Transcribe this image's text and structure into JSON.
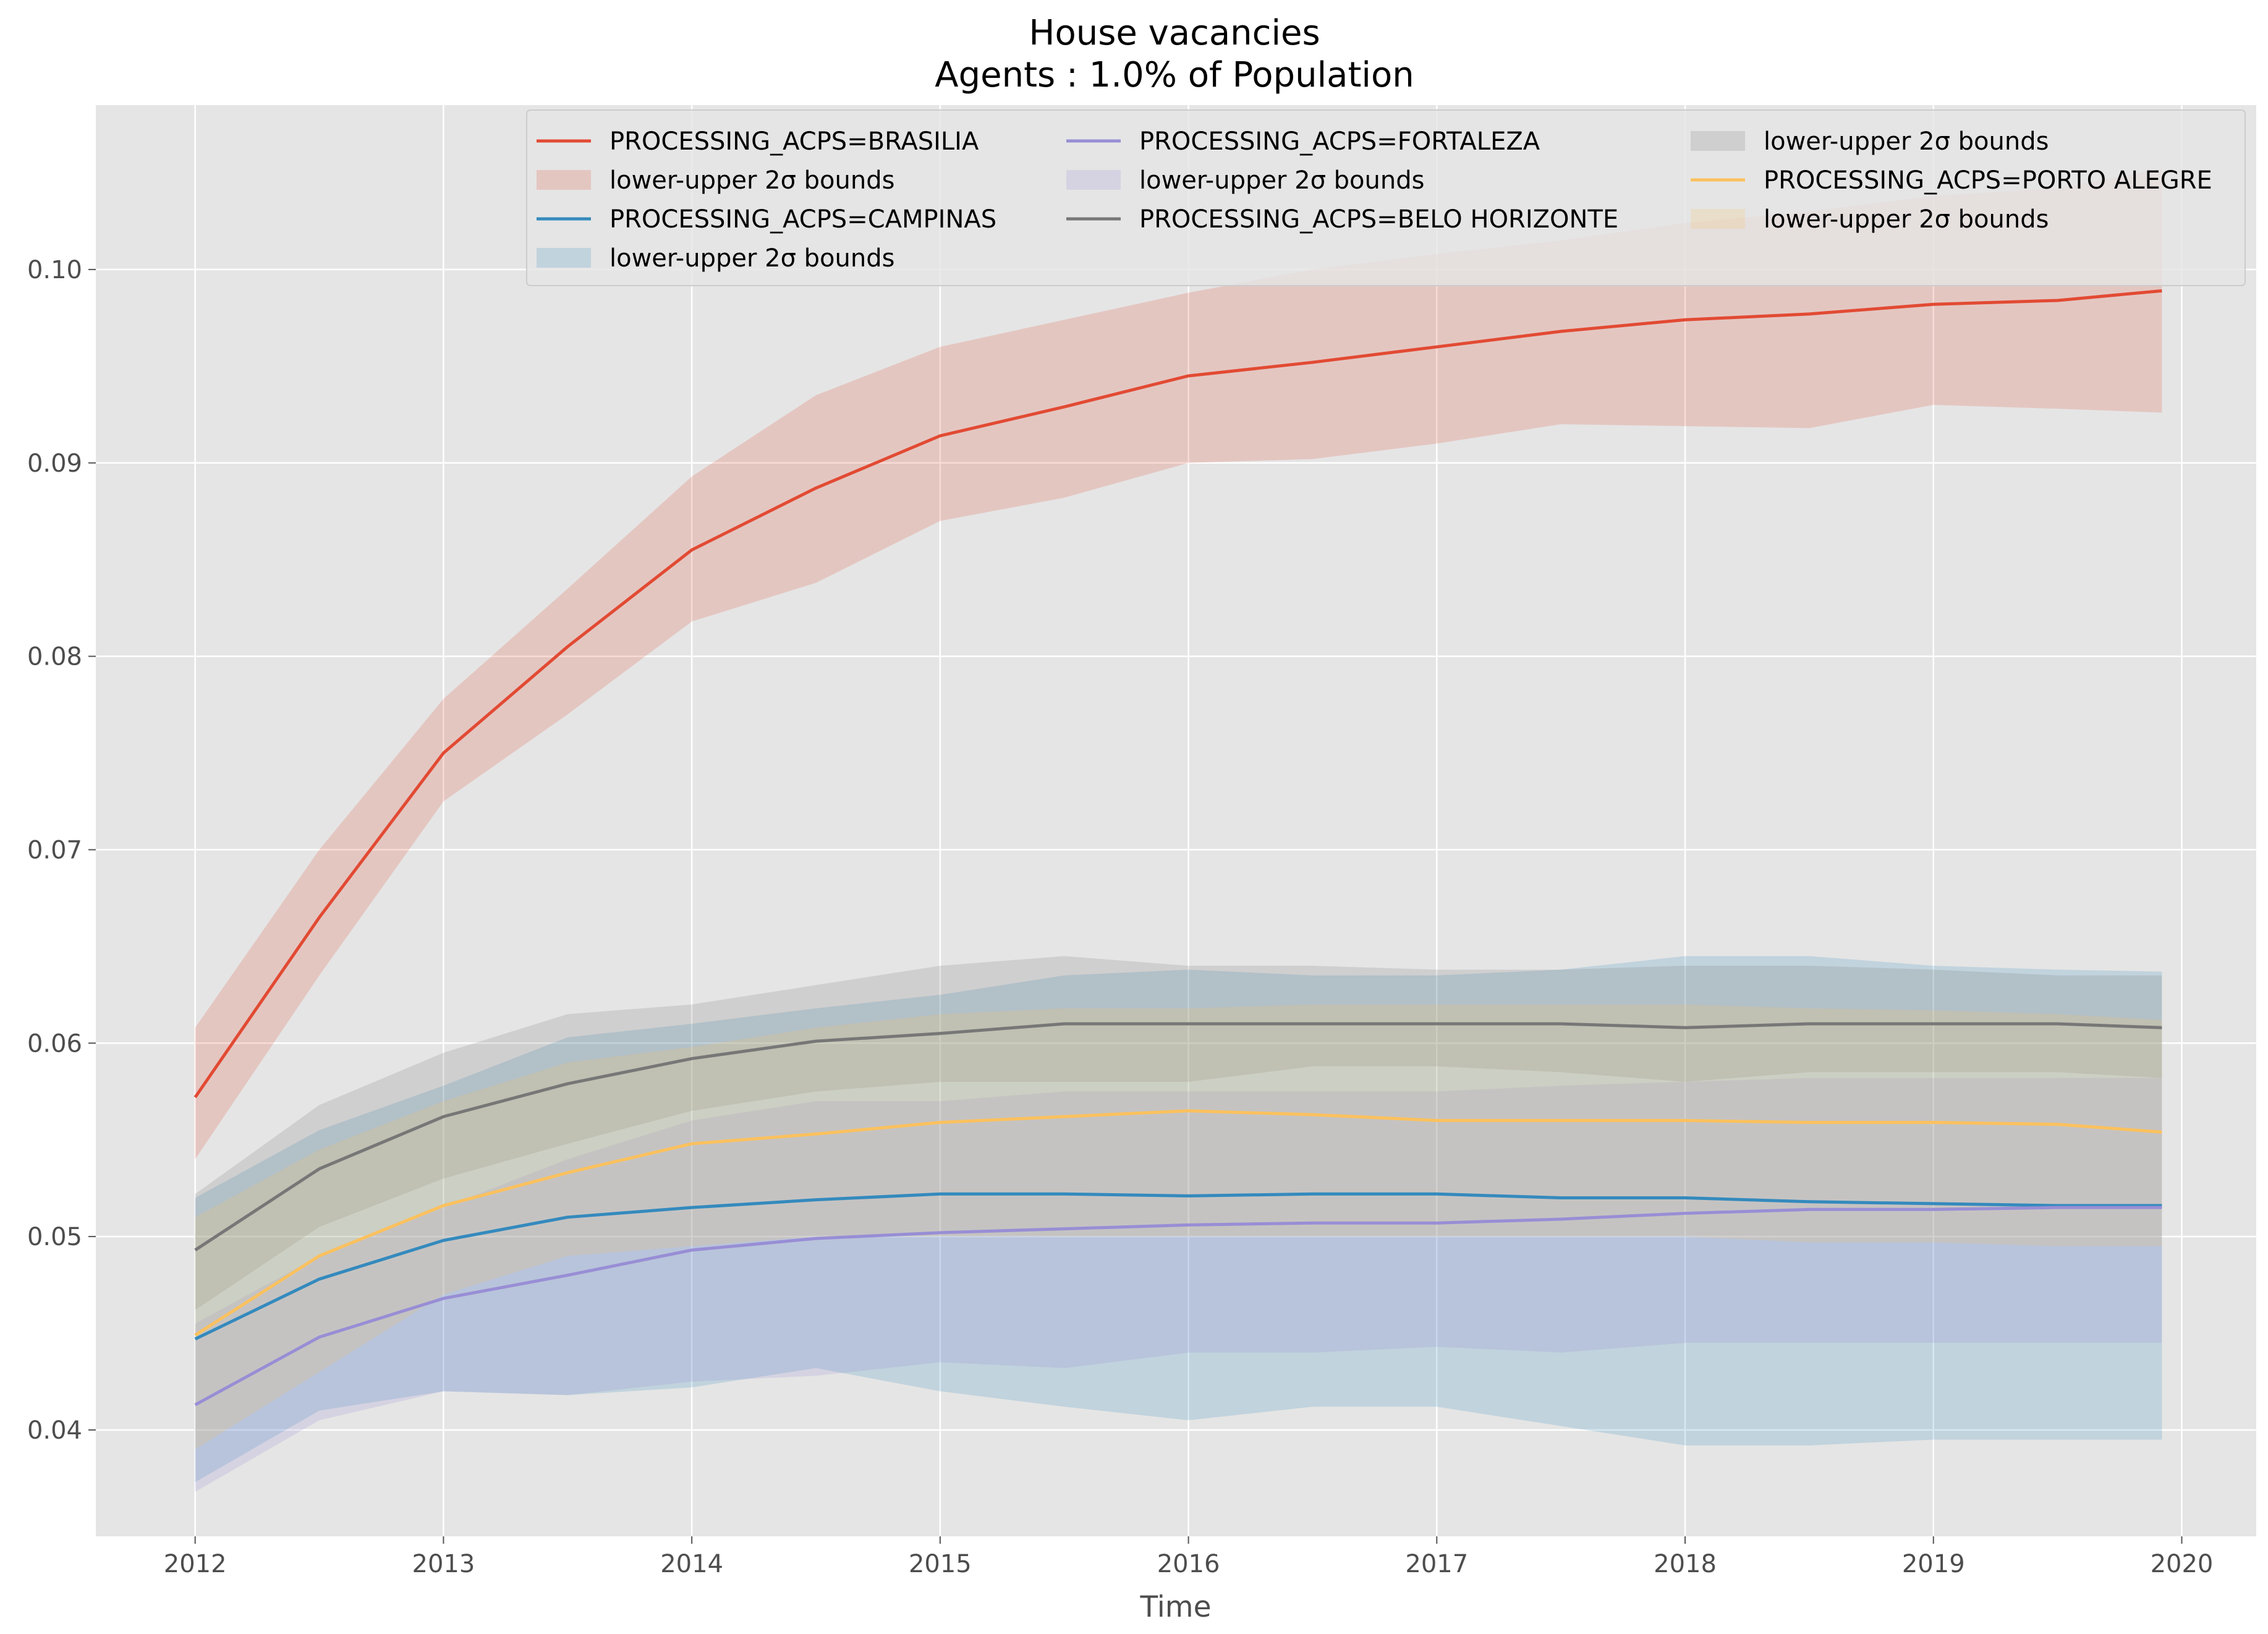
{
  "chart_data": {
    "type": "line",
    "title_line1": "House vacancies",
    "title_line2": "Agents : 1.0% of Population",
    "xlabel": "Time",
    "ylabel": "",
    "xlim": [
      2011.6,
      2020.3
    ],
    "ylim": [
      0.0345,
      0.1085
    ],
    "xticks": [
      2012,
      2013,
      2014,
      2015,
      2016,
      2017,
      2018,
      2019,
      2020
    ],
    "yticks": [
      0.04,
      0.05,
      0.06,
      0.07,
      0.08,
      0.09,
      0.1
    ],
    "ytick_labels": [
      "0.04",
      "0.05",
      "0.06",
      "0.07",
      "0.08",
      "0.09",
      "0.10"
    ],
    "grid": true,
    "legend_position": "top-right",
    "band_label": "lower-upper 2σ bounds",
    "x": [
      2012.0,
      2012.5,
      2013.0,
      2013.5,
      2014.0,
      2014.5,
      2015.0,
      2015.5,
      2016.0,
      2016.5,
      2017.0,
      2017.5,
      2018.0,
      2018.5,
      2019.0,
      2019.5,
      2019.92
    ],
    "series": [
      {
        "name": "PROCESSING_ACPS=BRASILIA",
        "color": "#E24A33",
        "values": [
          0.0572,
          0.0665,
          0.075,
          0.0805,
          0.0855,
          0.0887,
          0.0914,
          0.0929,
          0.0945,
          0.0952,
          0.096,
          0.0968,
          0.0974,
          0.0977,
          0.0982,
          0.0984,
          0.0989
        ],
        "lower": [
          0.054,
          0.0635,
          0.0725,
          0.077,
          0.0818,
          0.0838,
          0.087,
          0.0882,
          0.09,
          0.0902,
          0.091,
          0.092,
          0.0919,
          0.0918,
          0.093,
          0.0928,
          0.0926
        ],
        "upper": [
          0.0608,
          0.07,
          0.0778,
          0.0835,
          0.0893,
          0.0935,
          0.096,
          0.0974,
          0.0988,
          0.1,
          0.1008,
          0.1015,
          0.1024,
          0.103,
          0.1038,
          0.1042,
          0.1052
        ]
      },
      {
        "name": "PROCESSING_ACPS=CAMPINAS",
        "color": "#348ABD",
        "values": [
          0.0447,
          0.0478,
          0.0498,
          0.051,
          0.0515,
          0.0519,
          0.0522,
          0.0522,
          0.0521,
          0.0522,
          0.0522,
          0.052,
          0.052,
          0.0518,
          0.0517,
          0.0516,
          0.0516
        ],
        "lower": [
          0.0373,
          0.041,
          0.042,
          0.0418,
          0.0422,
          0.0432,
          0.042,
          0.0412,
          0.0405,
          0.0412,
          0.0412,
          0.0402,
          0.0392,
          0.0392,
          0.0395,
          0.0395,
          0.0395
        ],
        "upper": [
          0.052,
          0.0555,
          0.0578,
          0.0603,
          0.061,
          0.0618,
          0.0625,
          0.0635,
          0.0638,
          0.0635,
          0.0635,
          0.0638,
          0.0645,
          0.0645,
          0.064,
          0.0638,
          0.0637
        ]
      },
      {
        "name": "PROCESSING_ACPS=FORTALEZA",
        "color": "#988ED5",
        "values": [
          0.0413,
          0.0448,
          0.0468,
          0.048,
          0.0493,
          0.0499,
          0.0502,
          0.0504,
          0.0506,
          0.0507,
          0.0507,
          0.0509,
          0.0512,
          0.0514,
          0.0514,
          0.0515,
          0.0515
        ],
        "lower": [
          0.0368,
          0.0405,
          0.042,
          0.0418,
          0.0425,
          0.0428,
          0.0435,
          0.0432,
          0.044,
          0.044,
          0.0443,
          0.044,
          0.0445,
          0.0445,
          0.0445,
          0.0445,
          0.0445
        ],
        "upper": [
          0.0455,
          0.049,
          0.0515,
          0.054,
          0.056,
          0.057,
          0.057,
          0.0575,
          0.0575,
          0.0575,
          0.0575,
          0.0578,
          0.058,
          0.0582,
          0.0582,
          0.0582,
          0.0582
        ]
      },
      {
        "name": "PROCESSING_ACPS=BELO HORIZONTE",
        "color": "#777777",
        "values": [
          0.0493,
          0.0535,
          0.0562,
          0.0579,
          0.0592,
          0.0601,
          0.0605,
          0.061,
          0.061,
          0.061,
          0.061,
          0.061,
          0.0608,
          0.061,
          0.061,
          0.061,
          0.0608
        ],
        "lower": [
          0.0462,
          0.0505,
          0.053,
          0.0548,
          0.0565,
          0.0575,
          0.058,
          0.058,
          0.058,
          0.0588,
          0.0588,
          0.0585,
          0.058,
          0.0585,
          0.0585,
          0.0585,
          0.0582
        ],
        "upper": [
          0.0522,
          0.0568,
          0.0595,
          0.0615,
          0.062,
          0.063,
          0.064,
          0.0645,
          0.064,
          0.064,
          0.0638,
          0.0638,
          0.064,
          0.064,
          0.0638,
          0.0635,
          0.0635
        ]
      },
      {
        "name": "PROCESSING_ACPS=PORTO ALEGRE",
        "color": "#FBC15E",
        "values": [
          0.0449,
          0.049,
          0.0516,
          0.0533,
          0.0548,
          0.0553,
          0.0559,
          0.0562,
          0.0565,
          0.0563,
          0.056,
          0.056,
          0.056,
          0.0559,
          0.0559,
          0.0558,
          0.0554
        ],
        "lower": [
          0.039,
          0.043,
          0.047,
          0.049,
          0.0495,
          0.05,
          0.05,
          0.05,
          0.05,
          0.05,
          0.05,
          0.05,
          0.05,
          0.0497,
          0.0497,
          0.0495,
          0.0495
        ],
        "upper": [
          0.051,
          0.0545,
          0.057,
          0.059,
          0.0598,
          0.0608,
          0.0615,
          0.0618,
          0.0618,
          0.062,
          0.062,
          0.062,
          0.062,
          0.0618,
          0.0617,
          0.0615,
          0.0612
        ]
      }
    ]
  }
}
